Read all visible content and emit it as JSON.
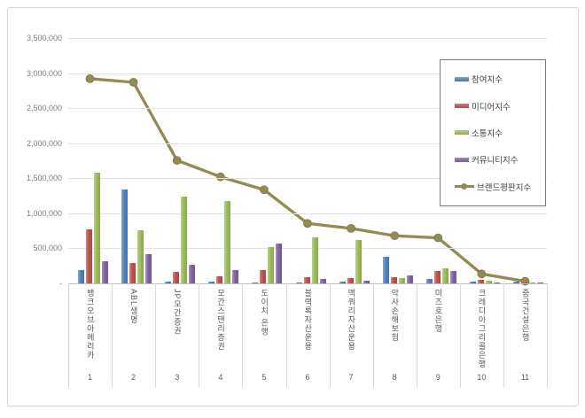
{
  "chart_data": {
    "type": "bar",
    "subtype": "grouped-bars-with-line-overlay",
    "title": "",
    "categories": [
      "뱅크오브아메리카",
      "ABL생명",
      "JP모간증권",
      "모간스탠리증권",
      "도이치 은행",
      "블랙록자산운용",
      "맥쿼리자산운용",
      "악사손해보험",
      "미즈호은행",
      "크레디아그리콜은행",
      "중국건설은행"
    ],
    "x_axis": {
      "rank_labels": [
        "1",
        "2",
        "3",
        "4",
        "5",
        "6",
        "7",
        "8",
        "9",
        "10",
        "11"
      ]
    },
    "y_axis": {
      "min": 0,
      "max": 3500000,
      "tick_interval": 500000,
      "tick_labels": [
        "3,500,000",
        "3,000,000",
        "2,500,000",
        "2,000,000",
        "1,500,000",
        "1,000,000",
        "500,000",
        "-"
      ]
    },
    "grid": true,
    "legend_position": "right-top",
    "series": [
      {
        "name": "참여지수",
        "type": "bar",
        "color": "#4F81BD",
        "values": [
          190000,
          1340000,
          20000,
          20000,
          15000,
          15000,
          20000,
          380000,
          65000,
          30000,
          25000
        ]
      },
      {
        "name": "미디어지수",
        "type": "bar",
        "color": "#C0504D",
        "values": [
          770000,
          290000,
          165000,
          105000,
          195000,
          85000,
          75000,
          85000,
          175000,
          45000,
          12000
        ]
      },
      {
        "name": "소통지수",
        "type": "bar",
        "color": "#9BBB59",
        "values": [
          1575000,
          765000,
          1240000,
          1180000,
          520000,
          655000,
          620000,
          75000,
          210000,
          35000,
          8000
        ]
      },
      {
        "name": "커뮤니티지수",
        "type": "bar",
        "color": "#8064A2",
        "values": [
          315000,
          415000,
          270000,
          190000,
          565000,
          70000,
          35000,
          115000,
          175000,
          15000,
          6000
        ]
      },
      {
        "name": "브랜드평판지수",
        "type": "line",
        "color": "#948A54",
        "marker_border": "#857C4B",
        "values": [
          2920000,
          2870000,
          1755000,
          1520000,
          1335000,
          855000,
          785000,
          680000,
          650000,
          135000,
          30000
        ]
      }
    ]
  },
  "colors": {
    "frame_border": "#D6D6D6",
    "gridline": "#E3E3E3",
    "axis_line": "#BFBFBF",
    "tick_label": "#808080",
    "category_label": "#595959",
    "separator": "#D9D9D9",
    "legend_border": "#7F7F7F",
    "legend_label": "#404040",
    "background": "#FFFFFF"
  }
}
